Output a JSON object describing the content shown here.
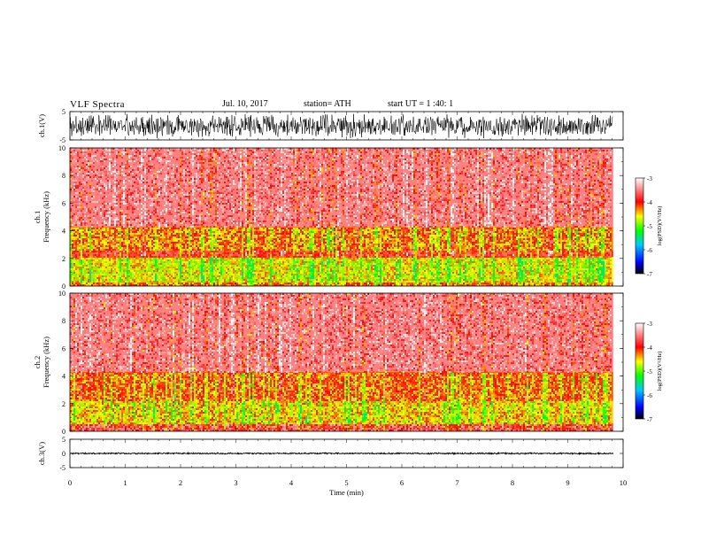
{
  "header": {
    "title": "VLF  Spectra",
    "date": "Jul.  10, 2017",
    "station": "station= ATH",
    "start": "start  UT  =    1 :40: 1"
  },
  "chart_data": [
    {
      "type": "line",
      "id": "ch1-waveform",
      "ylabel": "ch.1(V)",
      "ylim": [
        -5,
        5
      ],
      "yticks": [
        "5",
        "-5"
      ],
      "xlim": [
        0,
        10
      ],
      "x_extent": 9.82,
      "trace_level": 0,
      "trace_amplitude": 4.5,
      "color": "#000000"
    },
    {
      "type": "heatmap",
      "id": "ch1-spectrogram",
      "ylabel": "ch.1\nFrequency (kHz)",
      "ylim": [
        0,
        10
      ],
      "yticks": [
        "0",
        "2",
        "4",
        "6",
        "8",
        "10"
      ],
      "xlim": [
        0,
        10
      ],
      "x_extent": 9.82,
      "colorbar": {
        "label": "log(PSD)(V²/Hz)",
        "range": [
          -7,
          -3
        ],
        "ticks": [
          "-3",
          "-4",
          "-5",
          "-6",
          "-7"
        ],
        "colors": [
          "#000000",
          "#0000ff",
          "#00c8ff",
          "#00ff00",
          "#ffff00",
          "#ff0000",
          "#ffffff"
        ]
      },
      "bands": [
        {
          "from_khz": 0,
          "to_khz": 0.3,
          "level": -4.2
        },
        {
          "from_khz": 0.3,
          "to_khz": 2.1,
          "level": -4.6
        },
        {
          "from_khz": 2.1,
          "to_khz": 2.6,
          "level": -3.9
        },
        {
          "from_khz": 2.6,
          "to_khz": 4.3,
          "level": -4.3
        },
        {
          "from_khz": 4.3,
          "to_khz": 10,
          "level": -3.5
        }
      ]
    },
    {
      "type": "heatmap",
      "id": "ch2-spectrogram",
      "ylabel": "ch.2\nFrequency (kHz)",
      "ylim": [
        0,
        10
      ],
      "yticks": [
        "0",
        "2",
        "4",
        "6",
        "8",
        "10"
      ],
      "xlim": [
        0,
        10
      ],
      "x_extent": 9.82,
      "colorbar": {
        "label": "log(PSD)(V²/Hz)",
        "range": [
          -7,
          -3
        ],
        "ticks": [
          "-3",
          "-4",
          "-5",
          "-6",
          "-7"
        ],
        "colors": [
          "#000000",
          "#0000ff",
          "#00c8ff",
          "#00ff00",
          "#ffff00",
          "#ff0000",
          "#ffffff"
        ]
      },
      "bands": [
        {
          "from_khz": 0,
          "to_khz": 0.6,
          "level": -3.7
        },
        {
          "from_khz": 0.6,
          "to_khz": 2.2,
          "level": -4.5
        },
        {
          "from_khz": 2.2,
          "to_khz": 4.3,
          "level": -4.2
        },
        {
          "from_khz": 4.3,
          "to_khz": 10,
          "level": -3.5
        }
      ]
    },
    {
      "type": "line",
      "id": "ch3-waveform",
      "ylabel": "ch.3(V)",
      "ylim": [
        -5,
        5
      ],
      "yticks": [
        "5",
        "0",
        "-5"
      ],
      "xlabel": "Time  (min)",
      "xlim": [
        0,
        10
      ],
      "xticks": [
        "0",
        "1",
        "2",
        "3",
        "4",
        "5",
        "6",
        "7",
        "8",
        "9",
        "10"
      ],
      "x_extent": 9.82,
      "trace_level": 0,
      "trace_amplitude": 0.3,
      "color": "#000000"
    }
  ]
}
